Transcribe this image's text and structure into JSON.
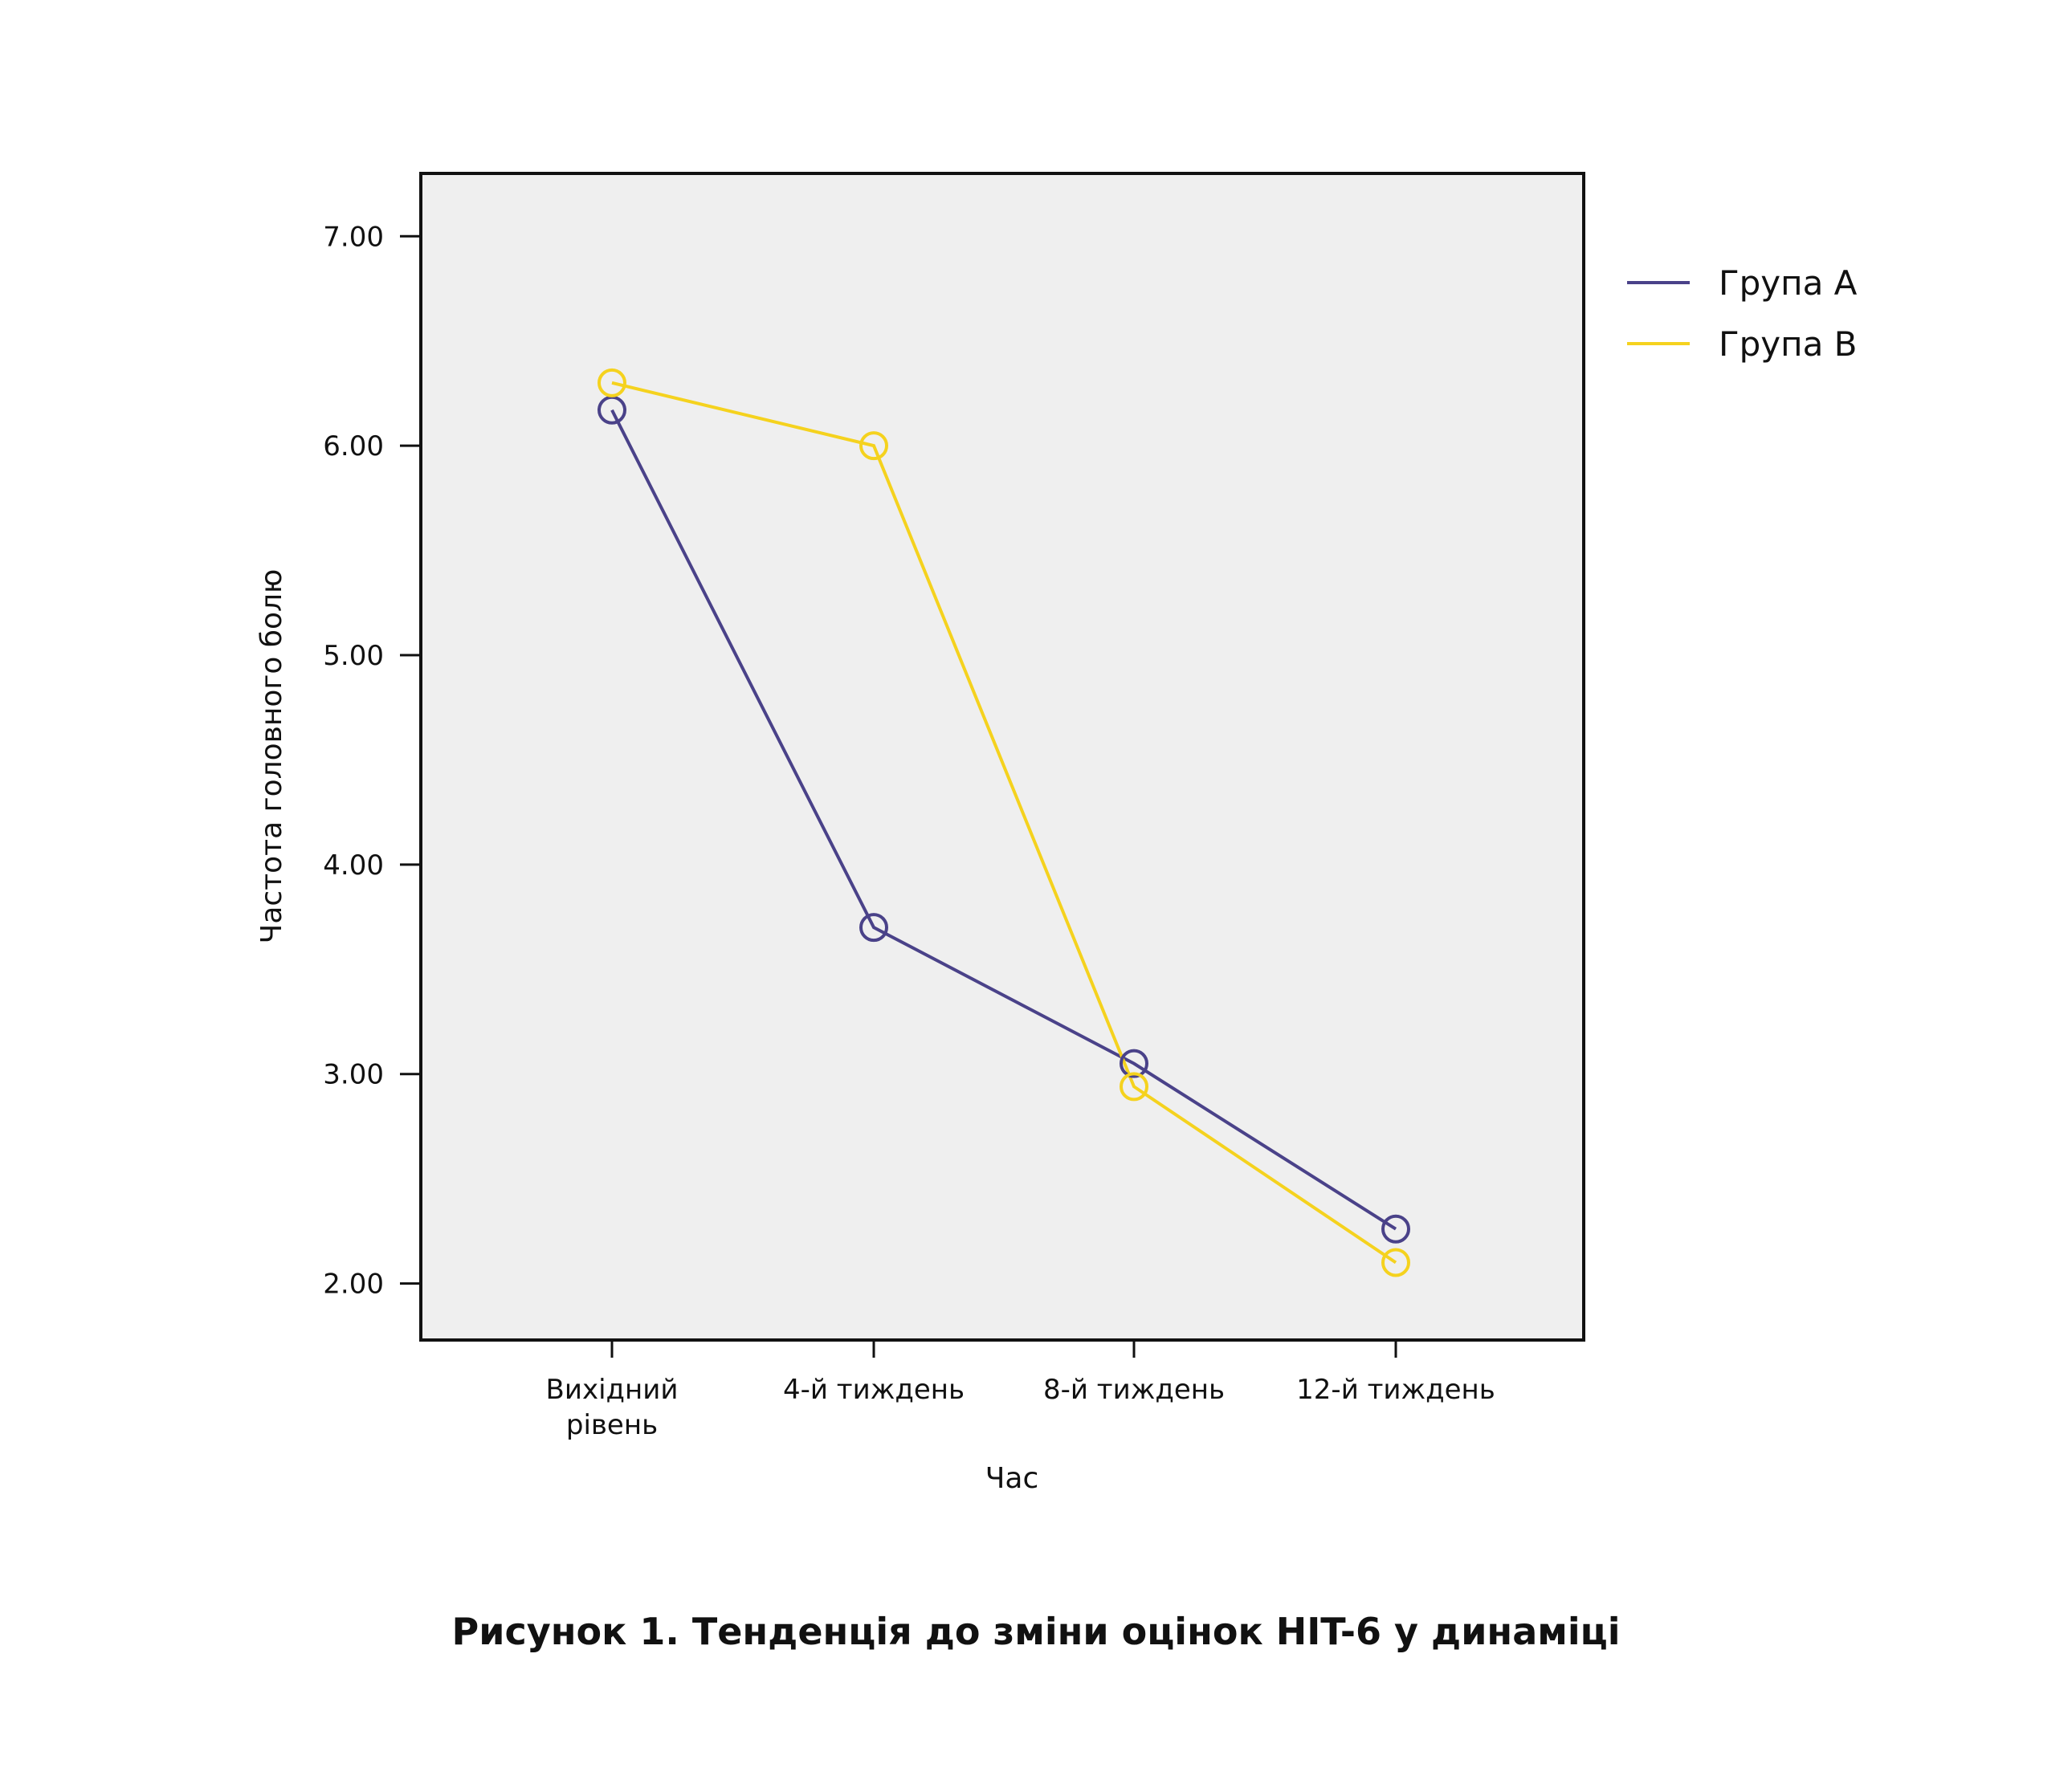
{
  "caption": "Рисунок 1. Тенденція до зміни оцінок HIT-6 у динаміці",
  "chart_data": {
    "type": "line",
    "categories": [
      [
        "Вихідний",
        "рівень"
      ],
      [
        "4-й тиждень"
      ],
      [
        "8-й тиждень"
      ],
      [
        "12-й тиждень"
      ]
    ],
    "xlabel": "Час",
    "ylabel": "Частота головного болю",
    "ylim": [
      1.73,
      7.3
    ],
    "yticks": [
      "2.00",
      "3.00",
      "4.00",
      "5.00",
      "6.00",
      "7.00"
    ],
    "grid": false,
    "legend_position": "right-top",
    "plot_background": "#efefef",
    "series": [
      {
        "name": "Група А",
        "color": "#4a4289",
        "values": [
          6.17,
          3.7,
          3.05,
          2.26
        ]
      },
      {
        "name": "Група В",
        "color": "#f5d21e",
        "values": [
          6.3,
          6.0,
          2.94,
          2.1
        ]
      }
    ]
  }
}
